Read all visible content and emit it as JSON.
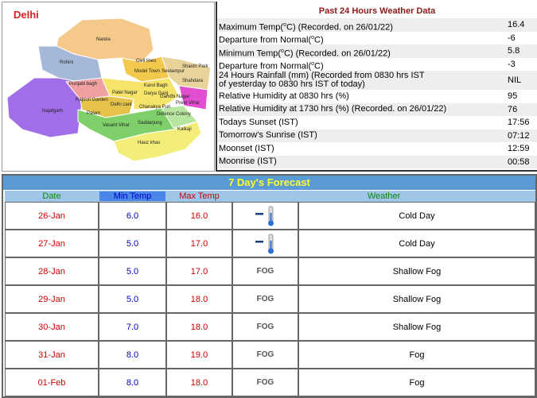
{
  "map": {
    "title": "Delhi",
    "labels": [
      "Narela",
      "Rohini",
      "Civil lines",
      "Model Town",
      "Seelampur",
      "Shastri Park",
      "Shahdara",
      "Punjabi bagh",
      "Patel Nagar",
      "Karol Bagh",
      "Rajouri Garden",
      "Delhi cant",
      "Darya Ganj",
      "Gandhi Nagar",
      "Preet Vihar",
      "Najafgarh",
      "Palam",
      "Vasant Vihar",
      "Chanakya Puri",
      "Defence Colony",
      "Saddarjung",
      "Kalkaji",
      "Hauz khas"
    ]
  },
  "past24": {
    "title": "Past 24 Hours Weather Data",
    "rows": [
      {
        "label": "Maximum Temp(",
        "sup": "o",
        "label_end": "C) (Recorded. on 26/01/22)",
        "value": "16.4"
      },
      {
        "label": "Departure from Normal(",
        "sup": "o",
        "label_end": "C)",
        "value": "-6"
      },
      {
        "label": "Minimum Temp(",
        "sup": "o",
        "label_end": "C) (Recorded. on 26/01/22)",
        "value": "5.8"
      },
      {
        "label": "Departure from Normal(",
        "sup": "o",
        "label_end": "C)",
        "value": "-3"
      },
      {
        "label": "24 Hours Rainfall (mm) (Recorded from 0830 hrs IST",
        "label2": "of yesterday to 0830 hrs IST of today)",
        "value": "NIL"
      },
      {
        "label": "Relative Humidity at 0830 hrs (%)",
        "value": "95"
      },
      {
        "label": "Relative Humidity at 1730 hrs (%) (Recorded. on 26/01/22)",
        "value": "76"
      },
      {
        "label": "Todays Sunset (IST)",
        "value": "17:56"
      },
      {
        "label": "Tomorrow's Sunrise (IST)",
        "value": "07:12"
      },
      {
        "label": "Moonset (IST)",
        "value": "12:59"
      },
      {
        "label": "Moonrise (IST)",
        "value": "00:58"
      }
    ]
  },
  "forecast": {
    "title": "7 Day's Forecast",
    "headers": [
      "Date",
      "Min Temp",
      "Max Temp",
      "Weather"
    ],
    "rows": [
      {
        "date": "26-Jan",
        "min": "6.0",
        "max": "16.0",
        "weather": "Cold Day"
      },
      {
        "date": "27-Jan",
        "min": "5.0",
        "max": "17.0",
        "weather": "Cold Day"
      },
      {
        "date": "28-Jan",
        "min": "5.0",
        "max": "17.0",
        "icon_text": "FOG",
        "weather": "Shallow Fog"
      },
      {
        "date": "29-Jan",
        "min": "5.0",
        "max": "18.0",
        "icon_text": "FOG",
        "weather": "Shallow Fog"
      },
      {
        "date": "30-Jan",
        "min": "7.0",
        "max": "18.0",
        "icon_text": "FOG",
        "weather": "Shallow Fog"
      },
      {
        "date": "31-Jan",
        "min": "8.0",
        "max": "19.0",
        "icon_text": "FOG",
        "weather": "Fog"
      },
      {
        "date": "01-Feb",
        "min": "8.0",
        "max": "18.0",
        "icon_text": "FOG",
        "weather": "Fog"
      }
    ]
  }
}
